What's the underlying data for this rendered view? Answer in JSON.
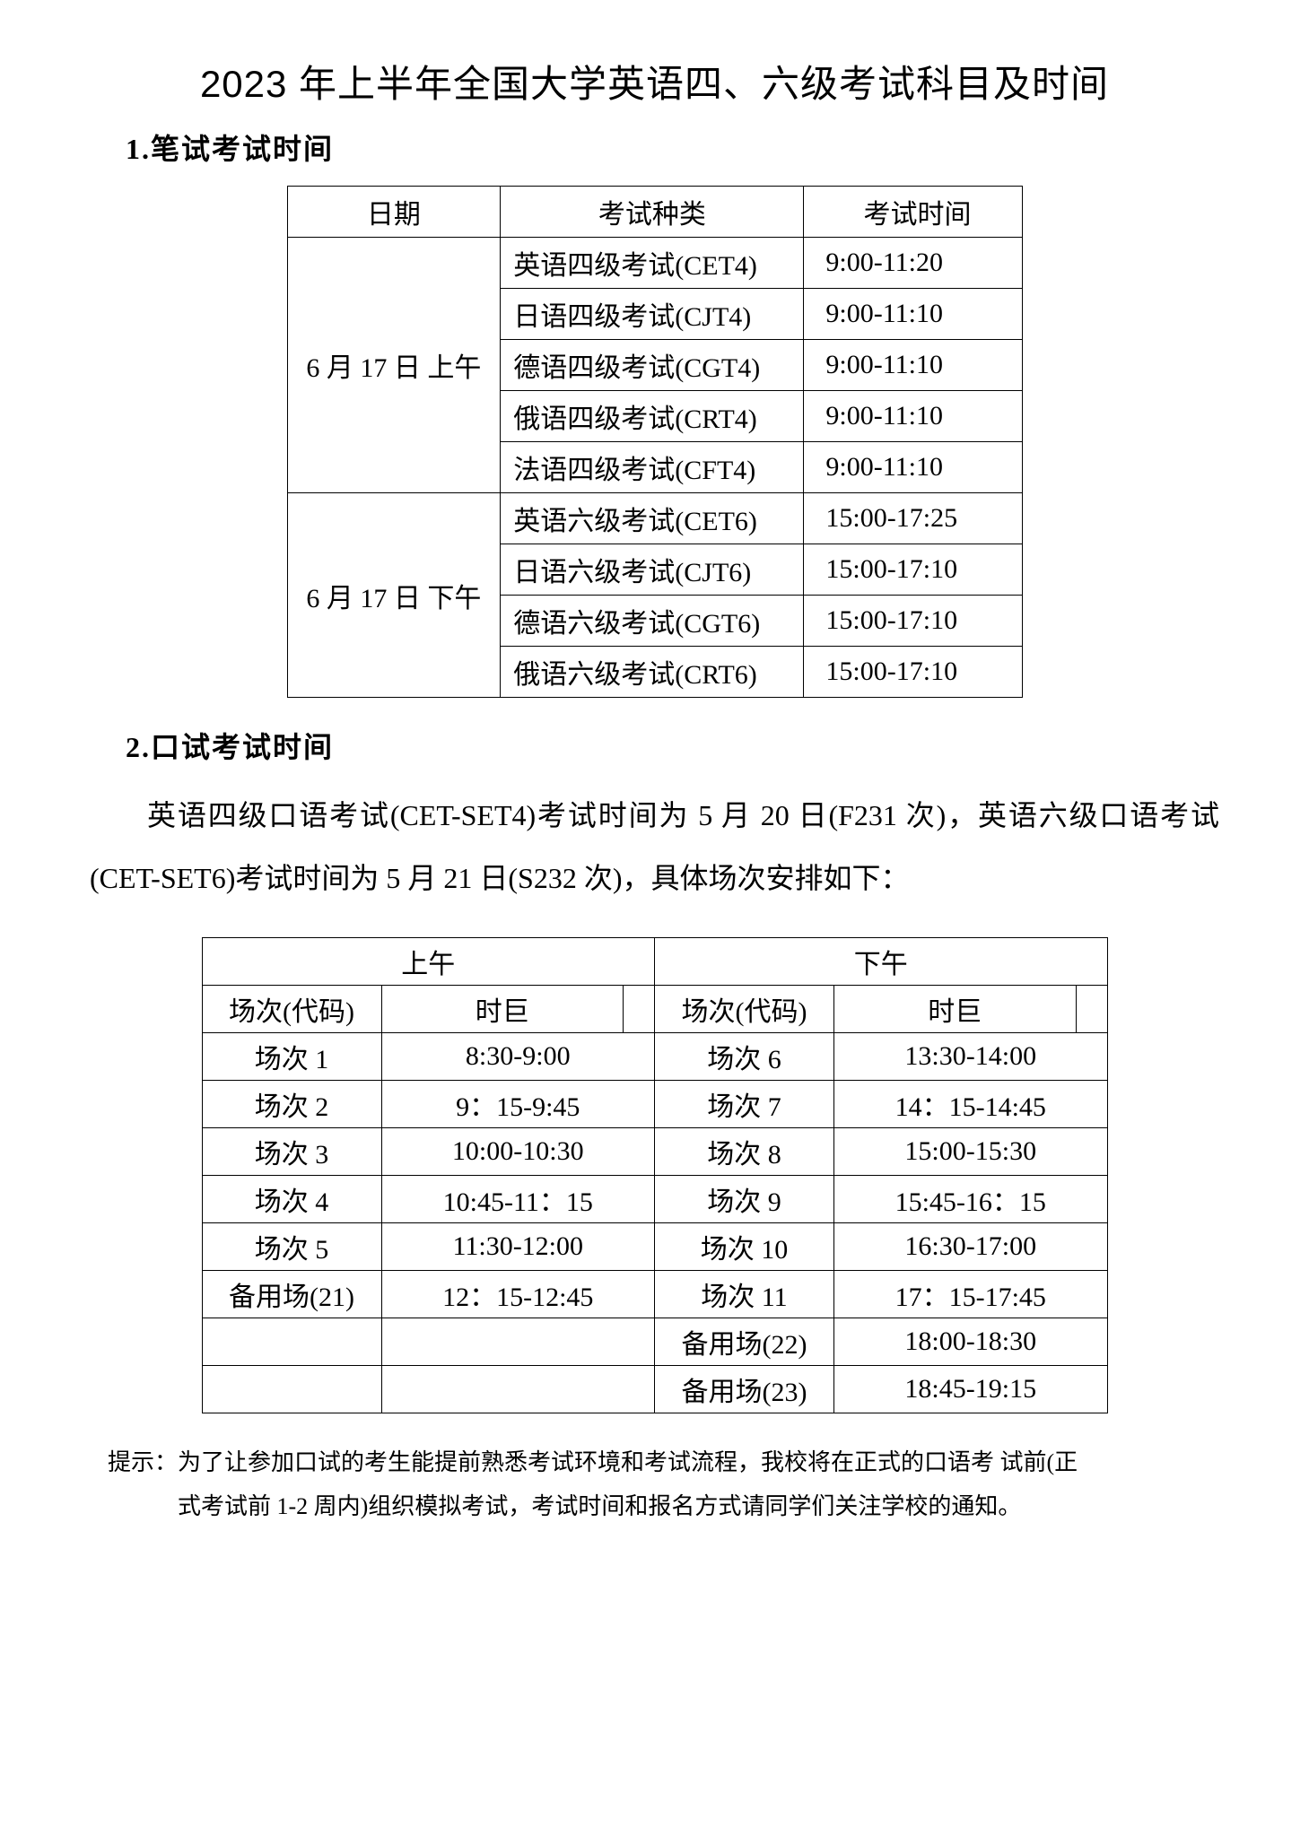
{
  "title": "2023 年上半年全国大学英语四、六级考试科目及时间",
  "section1": {
    "heading": "1.笔试考试时间",
    "table": {
      "headers": {
        "date": "日期",
        "type": "考试种类",
        "time": "考试时间"
      },
      "morning_date": "6 月 17 日 上午",
      "afternoon_date": "6 月 17 日 下午",
      "morning_rows": [
        {
          "type": "英语四级考试(CET4)",
          "time": "9:00-11:20"
        },
        {
          "type": "日语四级考试(CJT4)",
          "time": "9:00-11:10"
        },
        {
          "type": "德语四级考试(CGT4)",
          "time": "9:00-11:10"
        },
        {
          "type": "俄语四级考试(CRT4)",
          "time": "9:00-11:10"
        },
        {
          "type": "法语四级考试(CFT4)",
          "time": "9:00-11:10"
        }
      ],
      "afternoon_rows": [
        {
          "type": "英语六级考试(CET6)",
          "time": "15:00-17:25"
        },
        {
          "type": "日语六级考试(CJT6)",
          "time": "15:00-17:10"
        },
        {
          "type": "德语六级考试(CGT6)",
          "time": "15:00-17:10"
        },
        {
          "type": "俄语六级考试(CRT6)",
          "time": "15:00-17:10"
        }
      ]
    }
  },
  "section2": {
    "heading": "2.口试考试时间",
    "paragraph": "英语四级口语考试(CET-SET4)考试时间为 5 月 20 日(F231 次)，英语六级口语考试(CET-SET6)考试时间为 5 月 21 日(S232 次)，具体场次安排如下：",
    "table": {
      "top_headers": {
        "am": "上午",
        "pm": "下午"
      },
      "sub_headers": {
        "code": "场次(代码)",
        "span": "时巨"
      },
      "rows": [
        {
          "am_code": "场次 1",
          "am_time": "8:30-9:00",
          "pm_code": "场次 6",
          "pm_time": "13:30-14:00"
        },
        {
          "am_code": "场次 2",
          "am_time": "9：15-9:45",
          "pm_code": "场次 7",
          "pm_time": "14：15-14:45"
        },
        {
          "am_code": "场次 3",
          "am_time": "10:00-10:30",
          "pm_code": "场次 8",
          "pm_time": "15:00-15:30"
        },
        {
          "am_code": "场次 4",
          "am_time": "10:45-11：15",
          "pm_code": "场次 9",
          "pm_time": "15:45-16：15"
        },
        {
          "am_code": "场次 5",
          "am_time": "11:30-12:00",
          "pm_code": "场次 10",
          "pm_time": "16:30-17:00"
        },
        {
          "am_code": "备用场(21)",
          "am_time": "12：15-12:45",
          "pm_code": "场次 11",
          "pm_time": "17：15-17:45"
        },
        {
          "am_code": "",
          "am_time": "",
          "pm_code": "备用场(22)",
          "pm_time": "18:00-18:30"
        },
        {
          "am_code": "",
          "am_time": "",
          "pm_code": "备用场(23)",
          "pm_time": "18:45-19:15"
        }
      ]
    }
  },
  "note": {
    "line1": "提示：为了让参加口试的考生能提前熟悉考试环境和考试流程，我校将在正式的口语考 试前(正",
    "line2": "式考试前 1-2 周内)组织模拟考试，考试时间和报名方式请同学们关注学校的通知。"
  }
}
